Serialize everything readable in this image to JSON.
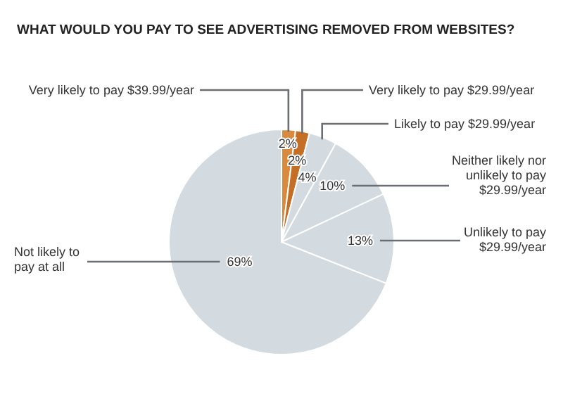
{
  "chart_data": {
    "type": "pie",
    "title": "WHAT WOULD YOU PAY TO SEE ADVERTISING REMOVED FROM WEBSITES?",
    "categories": [
      "Very likely to pay $39.99/year",
      "Very likely to pay $29.99/year",
      "Likely to pay $29.99/year",
      "Neither likely nor unlikely to pay $29.99/year",
      "Unlikely to pay $29.99/year",
      "Not likely to pay at all"
    ],
    "values": [
      2,
      2,
      4,
      10,
      13,
      69
    ],
    "colors": [
      "#d98a3e",
      "#c56f26",
      "#d3dbe1",
      "#d3dbe1",
      "#d3dbe1",
      "#d3dbe1"
    ],
    "value_labels": [
      "2%",
      "2%",
      "4%",
      "10%",
      "13%",
      "69%"
    ]
  }
}
